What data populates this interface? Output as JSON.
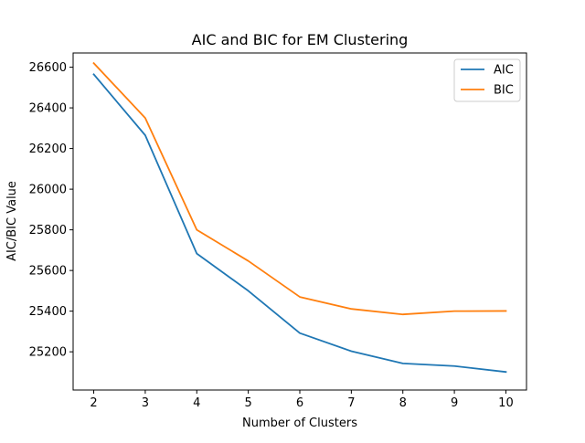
{
  "chart_data": {
    "type": "line",
    "title": "AIC and BIC for EM Clustering",
    "xlabel": "Number of Clusters",
    "ylabel": "AIC/BIC Value",
    "x": [
      2,
      3,
      4,
      5,
      6,
      7,
      8,
      9,
      10
    ],
    "xlim": [
      1.6,
      10.4
    ],
    "ylim": [
      25012,
      26670
    ],
    "xticks": [
      2,
      3,
      4,
      5,
      6,
      7,
      8,
      9,
      10
    ],
    "yticks": [
      25200,
      25400,
      25600,
      25800,
      26000,
      26200,
      26400,
      26600
    ],
    "grid": false,
    "legend_position": "top-right",
    "series": [
      {
        "name": "AIC",
        "color": "#1f77b4",
        "values": [
          26565,
          26265,
          25683,
          25500,
          25292,
          25203,
          25143,
          25130,
          25101
        ]
      },
      {
        "name": "BIC",
        "color": "#ff7f0e",
        "values": [
          26620,
          26350,
          25800,
          25647,
          25470,
          25411,
          25384,
          25400,
          25401
        ]
      }
    ]
  }
}
